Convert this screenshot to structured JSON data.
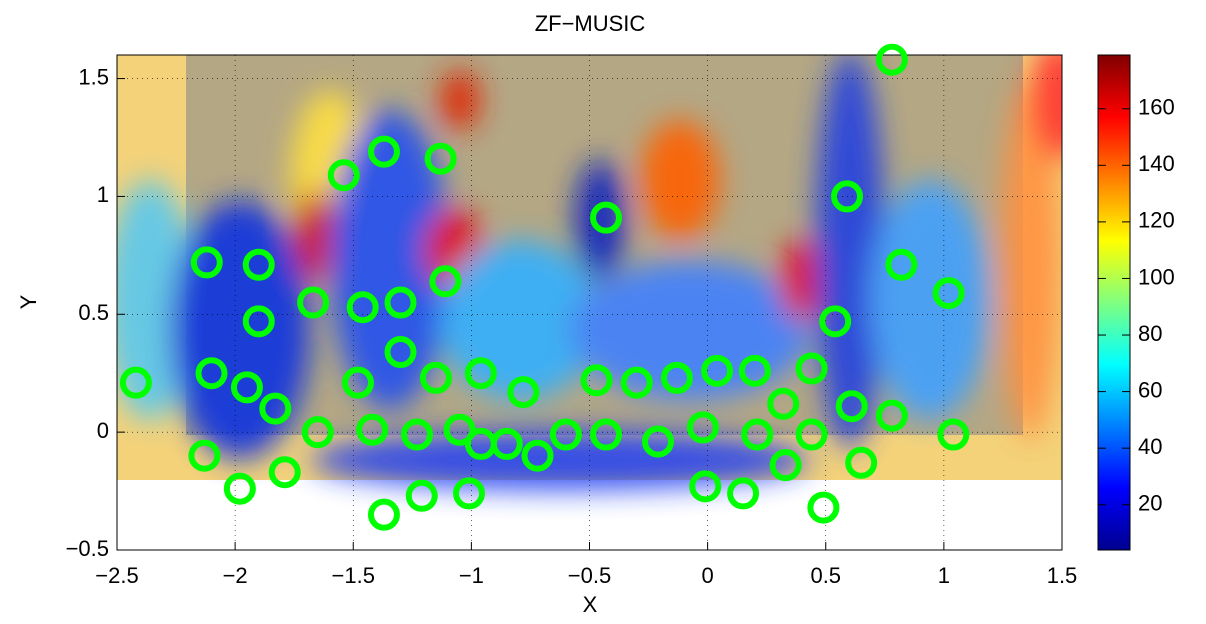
{
  "chart_data": {
    "type": "scatter",
    "title": "ZF−MUSIC",
    "x_label": "X",
    "y_label": "Y",
    "xlim": [
      -2.5,
      1.5
    ],
    "ylim": [
      -0.5,
      1.6
    ],
    "xticks": [
      {
        "value": -2.5,
        "label": "−2.5"
      },
      {
        "value": -2,
        "label": "−2"
      },
      {
        "value": -1.5,
        "label": "−1.5"
      },
      {
        "value": -1,
        "label": "−1"
      },
      {
        "value": -0.5,
        "label": "−0.5"
      },
      0,
      0.5,
      1,
      1.5
    ],
    "yticks": [
      {
        "value": -0.5,
        "label": "−0.5"
      },
      0,
      0.5,
      1,
      1.5
    ],
    "grid": true,
    "series": [
      {
        "color": "#00ff00",
        "x": [
          -2.42,
          -2.12,
          -1.9,
          -1.9,
          -2.1,
          -1.95,
          -1.83,
          -2.13,
          -1.98,
          -1.79,
          -1.65,
          -1.67,
          -1.54,
          -1.37,
          -1.13,
          -1.46,
          -1.3,
          -1.3,
          -1.11,
          -1.48,
          -1.42,
          -1.23,
          -1.15,
          -0.96,
          -1.05,
          -1.37,
          -1.21,
          -1.01,
          -0.96,
          -0.78,
          -0.72,
          -0.85,
          -0.6,
          -0.43,
          -0.47,
          -0.43,
          -0.3,
          -0.21,
          -0.13,
          -0.02,
          0.04,
          0.2,
          0.21,
          -0.01,
          0.15,
          0.33,
          0.32,
          0.44,
          0.44,
          0.54,
          0.61,
          0.65,
          0.49,
          0.59,
          0.78,
          0.82,
          0.78,
          1.02,
          1.04
        ],
        "values": [
          0.21,
          0.72,
          0.71,
          0.47,
          0.25,
          0.19,
          0.1,
          -0.1,
          -0.24,
          -0.17,
          0.0,
          0.55,
          1.09,
          1.19,
          1.16,
          0.53,
          0.55,
          0.34,
          0.64,
          0.21,
          0.01,
          -0.01,
          0.23,
          0.25,
          0.01,
          -0.35,
          -0.27,
          -0.26,
          -0.05,
          0.17,
          -0.1,
          -0.05,
          -0.01,
          0.91,
          0.22,
          -0.01,
          0.21,
          -0.04,
          0.23,
          0.02,
          0.26,
          0.26,
          -0.01,
          -0.23,
          -0.26,
          -0.14,
          0.12,
          0.27,
          -0.01,
          0.47,
          0.11,
          -0.13,
          -0.32,
          1.0,
          1.58,
          0.71,
          0.07,
          0.59,
          -0.01
        ]
      }
    ],
    "colorbar": {
      "colormap": "jet",
      "lim": [
        4,
        179
      ],
      "ticks": [
        20,
        40,
        60,
        80,
        100,
        120,
        140,
        160
      ]
    }
  }
}
